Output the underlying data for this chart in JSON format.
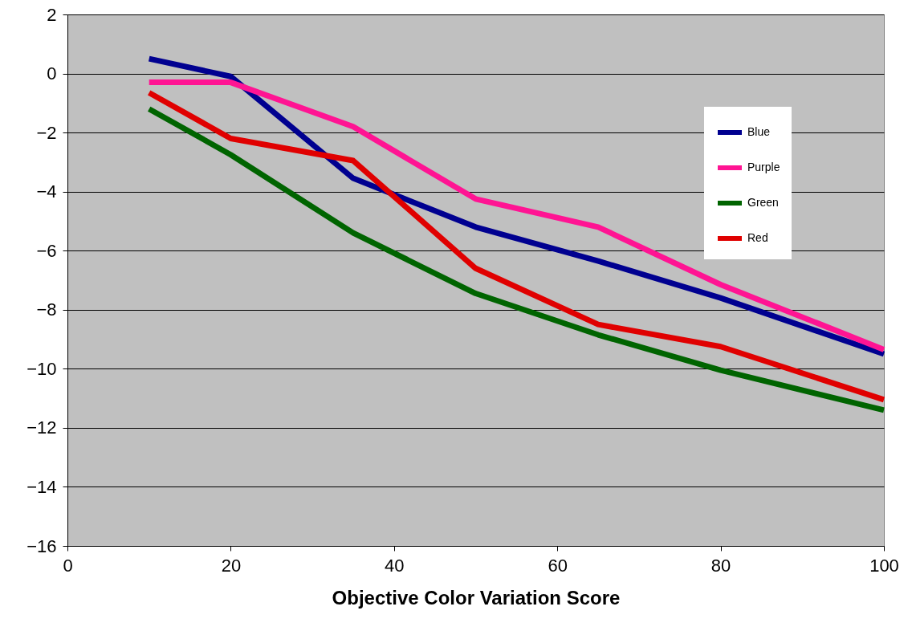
{
  "chart_data": {
    "type": "line",
    "xlabel": "Objective Color Variation Score",
    "x": [
      10,
      20,
      35,
      50,
      65,
      80,
      100
    ],
    "series": [
      {
        "name": "Blue",
        "color": "#000090",
        "values": [
          0.5,
          -0.1,
          -3.55,
          -5.2,
          -6.35,
          -7.6,
          -9.5
        ]
      },
      {
        "name": "Purple",
        "color": "#ff1493",
        "values": [
          -0.3,
          -0.3,
          -1.8,
          -4.25,
          -5.2,
          -7.15,
          -9.35
        ]
      },
      {
        "name": "Green",
        "color": "#006400",
        "values": [
          -1.2,
          -2.75,
          -5.4,
          -7.45,
          -8.85,
          -10.05,
          -11.4
        ]
      },
      {
        "name": "Red",
        "color": "#e00000",
        "values": [
          -0.65,
          -2.2,
          -2.95,
          -6.6,
          -8.5,
          -9.25,
          -11.05
        ]
      }
    ],
    "xlim": [
      0,
      100
    ],
    "xticks": [
      0,
      20,
      40,
      60,
      80,
      100
    ],
    "ylim": [
      -16,
      2
    ],
    "yticks": [
      -16,
      -14,
      -12,
      -10,
      -8,
      -6,
      -4,
      -2,
      0,
      2
    ],
    "grid": "y",
    "legend": "top right",
    "marker": "none",
    "line_style": "solid"
  }
}
